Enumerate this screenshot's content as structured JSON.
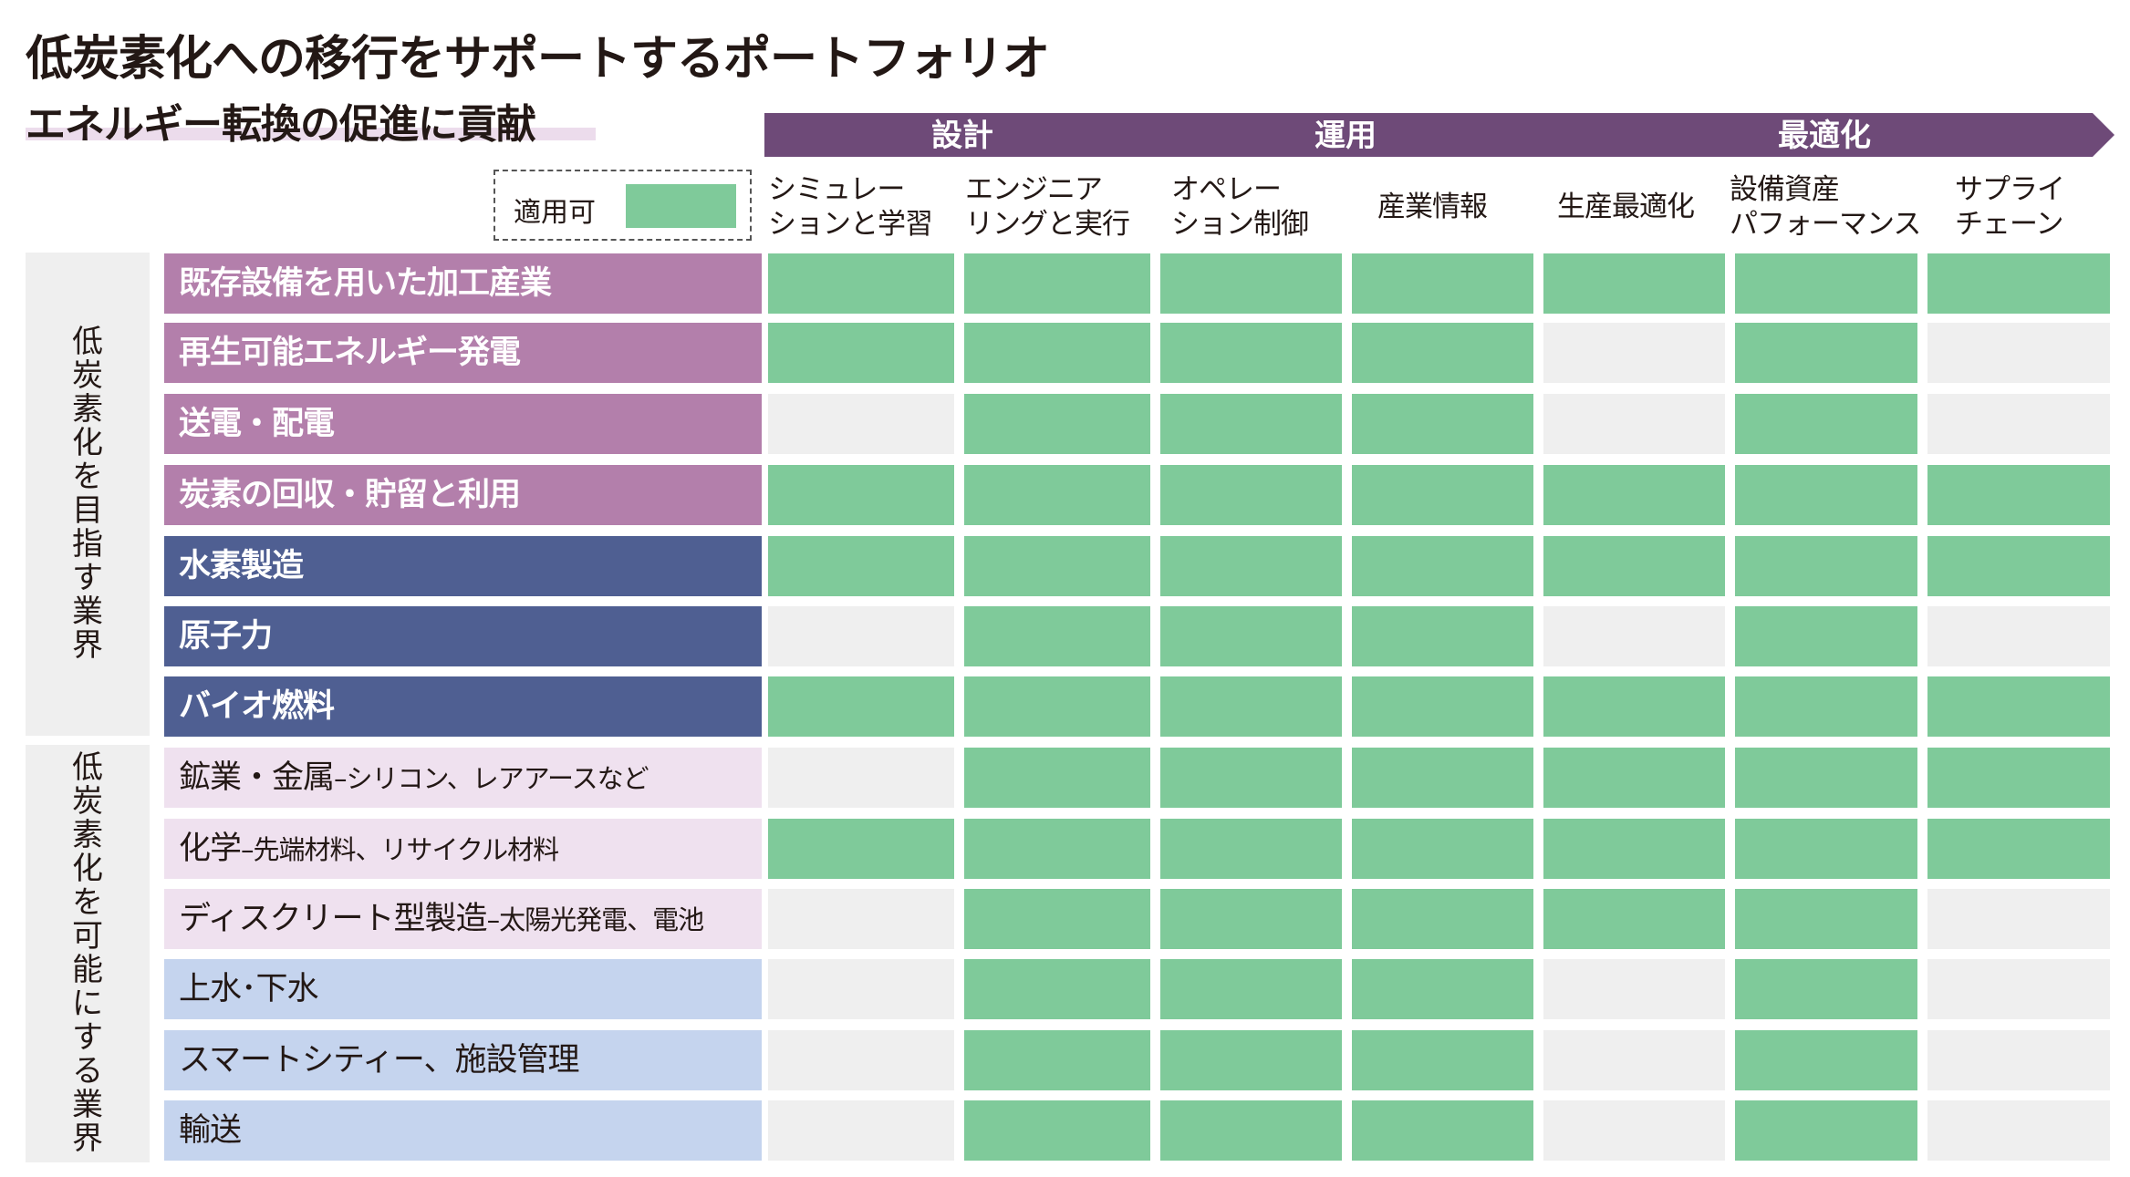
{
  "title": "低炭素化への移行をサポートするポートフォリオ",
  "subtitle": "エネルギー転換の促進に貢献",
  "phases": [
    {
      "label": "設計"
    },
    {
      "label": "運用"
    },
    {
      "label": "最適化"
    }
  ],
  "legend": {
    "label": "適用可",
    "color": "#7fca9a"
  },
  "columns": [
    [
      "シミュレー",
      "ションと学習"
    ],
    [
      "エンジニア",
      "リングと実行"
    ],
    [
      "オペレー",
      "ション制御"
    ],
    [
      "産業情報"
    ],
    [
      "生産最適化"
    ],
    [
      "設備資産",
      "パフォーマンス"
    ],
    [
      "サプライ",
      "チェーン"
    ]
  ],
  "groups": [
    {
      "label": "低炭素化を目指す業界"
    },
    {
      "label": "低炭素化を可能にする業界"
    }
  ],
  "colors": {
    "applicable": "#7fca9a",
    "not_applicable": "#efefef",
    "purple_dark": "#6e4a78",
    "row_pink": "#b37fab",
    "row_navy": "#4f5f92",
    "row_light_pink": "#efe1ef",
    "row_light_blue": "#c5d4ee"
  },
  "rows": [
    {
      "label": "既存設備を用いた加工産業",
      "style": "c1",
      "cells": [
        1,
        1,
        1,
        1,
        1,
        1,
        1
      ]
    },
    {
      "label": "再生可能エネルギー発電",
      "style": "c1",
      "cells": [
        1,
        1,
        1,
        1,
        0,
        1,
        0
      ]
    },
    {
      "label": "送電・配電",
      "style": "c1",
      "cells": [
        0,
        1,
        1,
        1,
        0,
        1,
        0
      ]
    },
    {
      "label": "炭素の回収・貯留と利用",
      "style": "c1",
      "cells": [
        1,
        1,
        1,
        1,
        1,
        1,
        1
      ]
    },
    {
      "label": "水素製造",
      "style": "c2",
      "cells": [
        1,
        1,
        1,
        1,
        1,
        1,
        1
      ]
    },
    {
      "label": "原子力",
      "style": "c2",
      "cells": [
        0,
        1,
        1,
        1,
        0,
        1,
        0
      ]
    },
    {
      "label": "バイオ燃料",
      "style": "c2",
      "cells": [
        1,
        1,
        1,
        1,
        1,
        1,
        1
      ]
    },
    {
      "label": "鉱業・金属",
      "suffix": "–シリコン、レアアースなど",
      "style": "c3",
      "cells": [
        0,
        1,
        1,
        1,
        1,
        1,
        1
      ]
    },
    {
      "label": "化学",
      "suffix": "–先端材料、リサイクル材料",
      "style": "c3",
      "cells": [
        1,
        1,
        1,
        1,
        1,
        1,
        1
      ]
    },
    {
      "label": "ディスクリート型製造",
      "suffix": "–太陽光発電、電池",
      "style": "c3",
      "cells": [
        0,
        1,
        1,
        1,
        1,
        1,
        0
      ]
    },
    {
      "label": "上水･下水",
      "style": "c4",
      "cells": [
        0,
        1,
        1,
        1,
        0,
        1,
        0
      ]
    },
    {
      "label": "スマートシティー、施設管理",
      "style": "c4",
      "cells": [
        0,
        1,
        1,
        1,
        0,
        1,
        0
      ]
    },
    {
      "label": "輸送",
      "style": "c4",
      "cells": [
        0,
        1,
        1,
        1,
        0,
        1,
        0
      ]
    }
  ]
}
